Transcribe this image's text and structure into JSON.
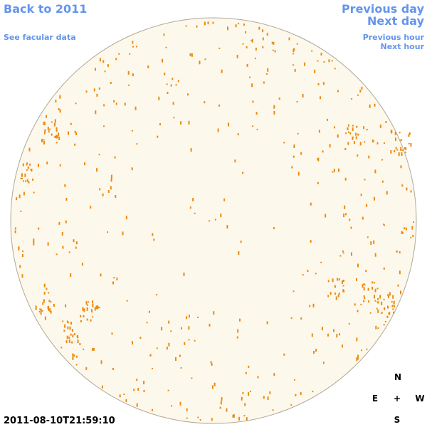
{
  "links": {
    "back": "Back to 2011",
    "facular": "See facular data",
    "previous_day": "Previous day",
    "next_day": "Next day",
    "previous_hour": "Previous hour",
    "next_hour": "Next hour"
  },
  "timestamp": "2011-08-10T21:59:10",
  "compass": {
    "north": "N",
    "east": "E",
    "center": "+",
    "west": "W",
    "south": "S"
  }
}
